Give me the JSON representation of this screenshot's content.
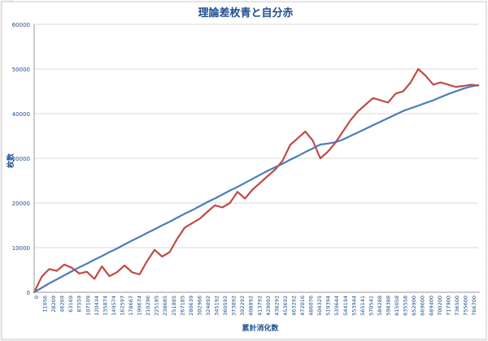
{
  "chart_data": {
    "type": "line",
    "title": "理論差枚青と自分赤",
    "xlabel": "累計消化数",
    "ylabel": "枚数",
    "ylim": [
      0,
      60000
    ],
    "yticks": [
      0,
      10000,
      20000,
      30000,
      40000,
      50000,
      60000
    ],
    "grid": true,
    "legend": "none",
    "x_tick_labels": [
      "0",
      "11056",
      "28209",
      "46269",
      "63169",
      "87559",
      "107109",
      "120434",
      "135874",
      "149574",
      "162597",
      "178667",
      "190674",
      "210296",
      "225185",
      "238685",
      "251885",
      "267185",
      "280639",
      "302966",
      "324892",
      "345192",
      "360592",
      "373892",
      "392292",
      "408892",
      "413792",
      "429092",
      "438292",
      "453692",
      "463292",
      "472016",
      "486076",
      "504325",
      "519394",
      "539644",
      "544194",
      "553944",
      "565141",
      "570541",
      "584288",
      "598388",
      "615058",
      "635558",
      "652900",
      "669600",
      "689400",
      "700200",
      "717900",
      "736500",
      "755600",
      "766700"
    ],
    "x": [
      0,
      13000,
      26000,
      39000,
      52000,
      65000,
      78000,
      91000,
      104000,
      117000,
      130000,
      143000,
      156000,
      169000,
      182000,
      195000,
      208000,
      221000,
      234000,
      247000,
      260000,
      273000,
      286000,
      299000,
      312000,
      325000,
      338000,
      351000,
      364000,
      377000,
      390000,
      403000,
      416000,
      429000,
      442000,
      455000,
      468000,
      481000,
      494000,
      507000,
      520000,
      533000,
      546000,
      559000,
      572000,
      585000,
      598000,
      611000,
      624000,
      637000,
      650000,
      663000,
      676000,
      689000,
      702000,
      715000,
      728000,
      741000,
      754000,
      766700
    ],
    "series": [
      {
        "color": "#4a7ebb",
        "values": [
          0,
          1000,
          2000,
          2900,
          3800,
          4700,
          5600,
          6400,
          7300,
          8100,
          9000,
          9800,
          10700,
          11600,
          12400,
          13300,
          14100,
          15000,
          15800,
          16700,
          17600,
          18400,
          19300,
          20200,
          21000,
          21900,
          22800,
          23600,
          24500,
          25400,
          26300,
          27200,
          28000,
          28800,
          29700,
          30500,
          31400,
          32200,
          33100,
          33300,
          33600,
          34200,
          35000,
          35800,
          36600,
          37400,
          38200,
          39000,
          39800,
          40600,
          41200,
          41800,
          42400,
          43000,
          43700,
          44400,
          45000,
          45600,
          46100,
          46400
        ]
      },
      {
        "color": "#be4b48",
        "values": [
          0,
          3500,
          5200,
          4800,
          6200,
          5500,
          4200,
          4600,
          3000,
          5800,
          3600,
          4500,
          6000,
          4500,
          4000,
          7000,
          9500,
          8000,
          9000,
          12000,
          14500,
          15500,
          16500,
          18000,
          19500,
          19000,
          20000,
          22500,
          21000,
          23000,
          24500,
          26000,
          27500,
          29500,
          33000,
          34500,
          36000,
          34000,
          30000,
          31500,
          33500,
          36000,
          38500,
          40500,
          42000,
          43500,
          43000,
          42500,
          44500,
          45000,
          47000,
          50000,
          48500,
          46500,
          47000,
          46500,
          46000,
          46200,
          46500,
          46300
        ]
      }
    ]
  }
}
